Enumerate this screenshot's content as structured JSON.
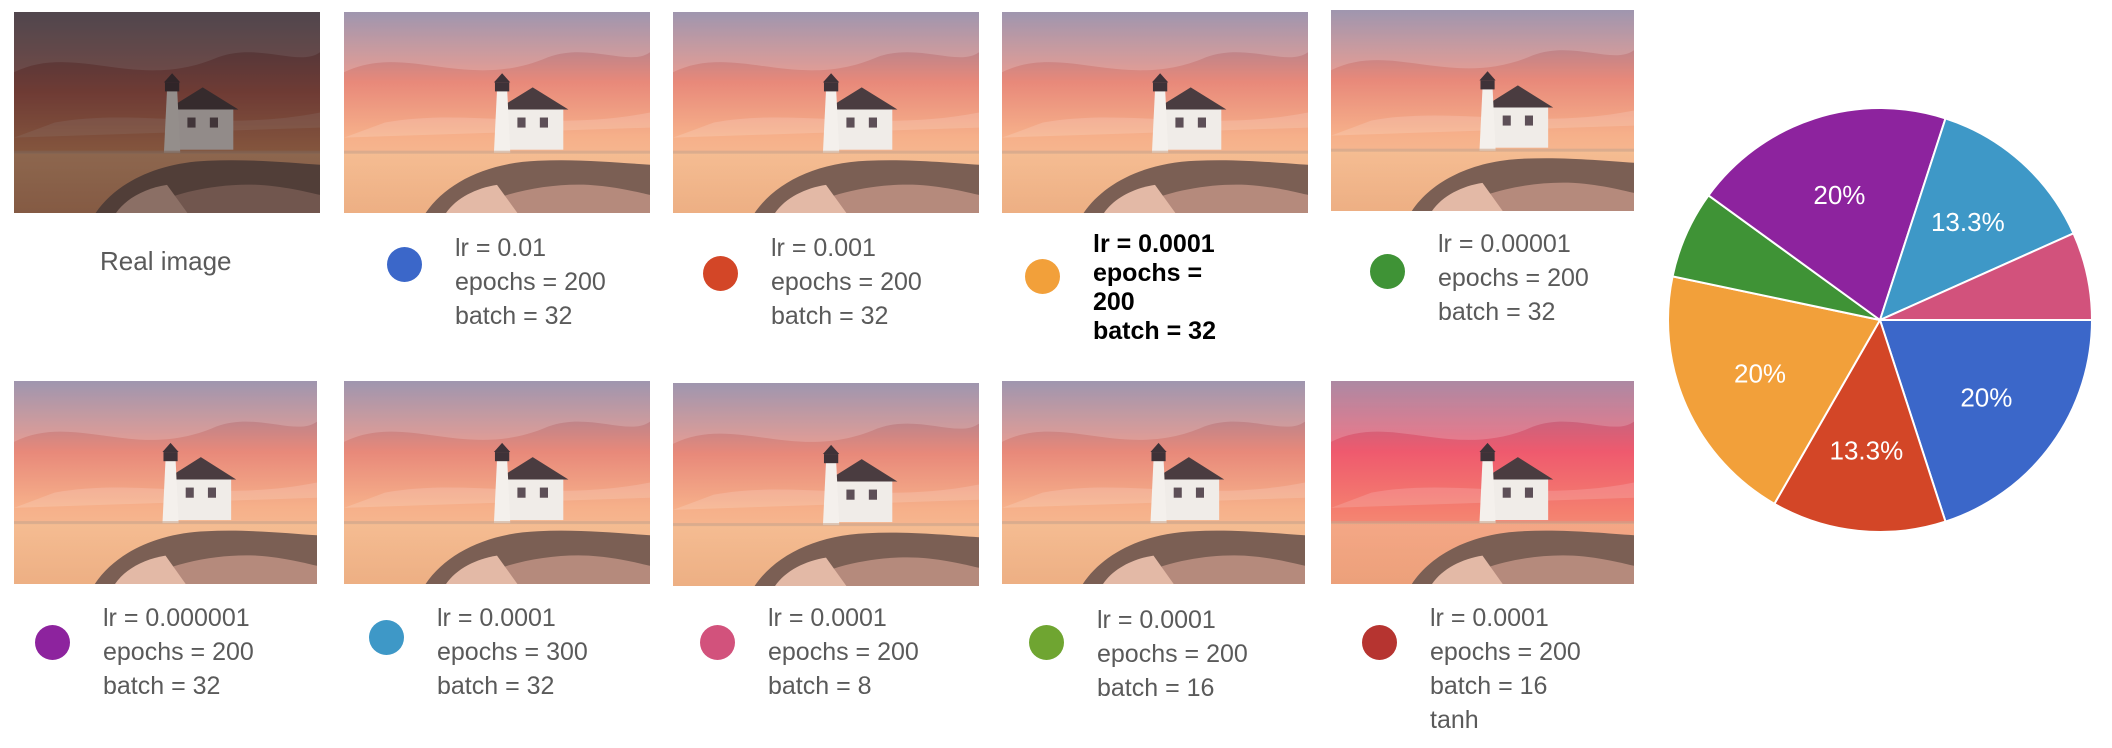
{
  "real_caption": "Real image",
  "legend": [
    {
      "color": "#3b67c9",
      "lines": [
        "lr = 0.01",
        "epochs = 200",
        "batch = 32"
      ],
      "bold": false
    },
    {
      "color": "#d34627",
      "lines": [
        "lr = 0.001",
        "epochs = 200",
        "batch = 32"
      ],
      "bold": false
    },
    {
      "color": "#f2a03a",
      "lines": [
        "lr = 0.0001",
        "epochs =",
        "200",
        "batch = 32"
      ],
      "bold": true
    },
    {
      "color": "#3f9336",
      "lines": [
        "lr = 0.00001",
        "epochs = 200",
        "batch = 32"
      ],
      "bold": false
    },
    {
      "color": "#8d239e",
      "lines": [
        "lr = 0.000001",
        "epochs = 200",
        "batch = 32"
      ],
      "bold": false
    },
    {
      "color": "#3e98c7",
      "lines": [
        "lr = 0.0001",
        "epochs = 300",
        "batch = 32"
      ],
      "bold": false
    },
    {
      "color": "#d2527c",
      "lines": [
        "lr = 0.0001",
        "epochs = 200",
        "batch = 8"
      ],
      "bold": false
    },
    {
      "color": "#6fa531",
      "lines": [
        "lr = 0.0001",
        "epochs = 200",
        "batch = 16"
      ],
      "bold": false
    },
    {
      "color": "#b63430",
      "lines": [
        "lr = 0.0001",
        "epochs = 200",
        "batch = 16",
        "tanh"
      ],
      "bold": false
    }
  ],
  "chart_data": {
    "type": "pie",
    "slices": [
      {
        "value": 20,
        "label": "20%",
        "color": "#3b67c9"
      },
      {
        "value": 13.3,
        "label": "13.3%",
        "color": "#d34627"
      },
      {
        "value": 20,
        "label": "20%",
        "color": "#f2a03a"
      },
      {
        "value": 6.7,
        "label": "",
        "color": "#3f9336"
      },
      {
        "value": 20,
        "label": "20%",
        "color": "#8d239e"
      },
      {
        "value": 13.3,
        "label": "13.3%",
        "color": "#3e98c7"
      },
      {
        "value": 6.7,
        "label": "",
        "color": "#d2527c"
      }
    ]
  }
}
